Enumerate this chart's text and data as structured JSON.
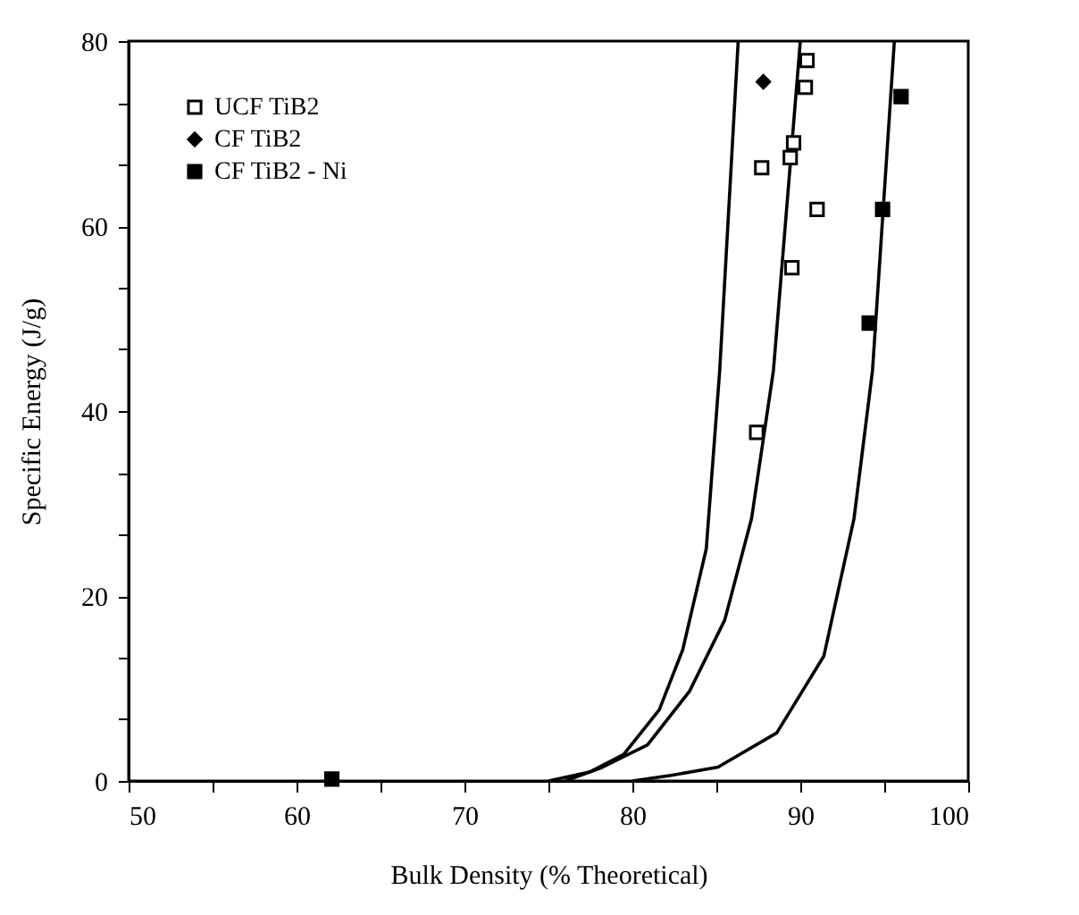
{
  "chart_data": {
    "type": "scatter",
    "xlabel": "Bulk Density (% Theoretical)",
    "ylabel": "Specific Energy (J/g)",
    "xlim": [
      50,
      100
    ],
    "ylim": [
      0,
      80
    ],
    "xticks": [
      50,
      {
        "value": 55,
        "label": null
      },
      60,
      {
        "value": 65,
        "label": null
      },
      70,
      {
        "value": 75,
        "label": null
      },
      80,
      {
        "value": 85,
        "label": null
      },
      90,
      {
        "value": 95,
        "label": null
      },
      100
    ],
    "yticks": [
      0,
      {
        "value": 6.667,
        "label": null
      },
      {
        "value": 13.333,
        "label": null
      },
      20,
      {
        "value": 26.667,
        "label": null
      },
      {
        "value": 33.333,
        "label": null
      },
      40,
      {
        "value": 46.667,
        "label": null
      },
      {
        "value": 53.333,
        "label": null
      },
      60,
      {
        "value": 66.667,
        "label": null
      },
      {
        "value": 73.333,
        "label": null
      },
      80
    ],
    "grid": false,
    "legend": "top left",
    "series": [
      {
        "name": "UCF TiB2",
        "type": "scatter",
        "marker": "square",
        "color": "#ffffff",
        "x": [
          90.4,
          90.3,
          89.6,
          89.4,
          87.7,
          91.0,
          89.5,
          87.4
        ],
        "values": [
          77.9,
          75.0,
          69.0,
          67.4,
          66.3,
          61.8,
          55.5,
          37.7
        ]
      },
      {
        "name": "CF TiB2",
        "type": "scatter",
        "marker": "diamond",
        "color": "#000000",
        "x": [
          87.8
        ],
        "values": [
          75.6
        ]
      },
      {
        "name": "CF TiB2 - Ni",
        "type": "scatter",
        "marker": "square",
        "color": "#000000",
        "x": [
          62.1,
          94.1,
          94.9,
          96.0
        ],
        "values": [
          0.2,
          49.5,
          61.8,
          74.0
        ]
      },
      {
        "type": "line",
        "color": "#000000",
        "x": [
          75.0,
          77.5,
          79.5,
          81.6,
          83.0,
          84.4,
          85.2,
          86.3
        ],
        "values": [
          0,
          1.0,
          2.9,
          7.7,
          14.2,
          25.1,
          44.4,
          80
        ]
      },
      {
        "type": "line",
        "color": "#000000",
        "x": [
          76.0,
          78.1,
          80.9,
          83.4,
          85.5,
          87.1,
          88.4,
          90.0
        ],
        "values": [
          0,
          1.4,
          3.9,
          9.7,
          17.4,
          28.4,
          44.4,
          80
        ]
      },
      {
        "type": "line",
        "color": "#000000",
        "x": [
          80.0,
          82.3,
          85.1,
          88.6,
          91.4,
          93.2,
          94.3,
          95.6
        ],
        "values": [
          0,
          0.6,
          1.5,
          5.2,
          13.5,
          28.4,
          44.4,
          80
        ]
      }
    ]
  }
}
